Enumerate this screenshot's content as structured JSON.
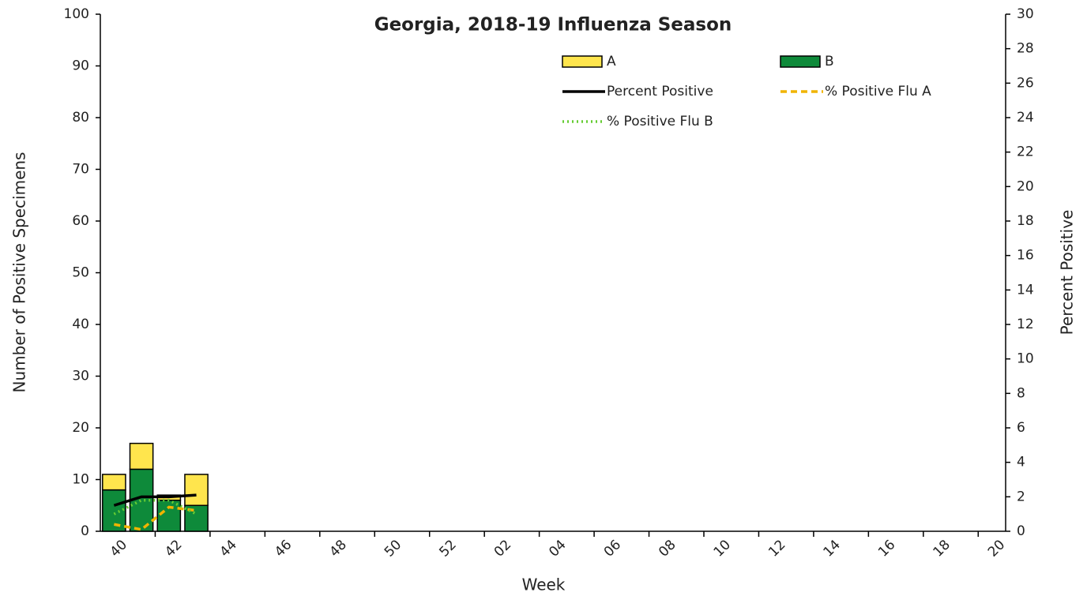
{
  "chart_data": {
    "type": "bar",
    "title": "Georgia, 2018-19 Influenza Season",
    "x_label": "Week",
    "y_label": "Number of Positive Specimens",
    "y2_label": "Percent Positive",
    "categories": [
      "40",
      null,
      "42",
      null,
      "44",
      null,
      "46",
      null,
      "48",
      null,
      "50",
      null,
      "52",
      null,
      "02",
      null,
      "04",
      null,
      "06",
      null,
      "08",
      null,
      "10",
      null,
      "12",
      null,
      "14",
      null,
      "16",
      null,
      "18",
      null,
      "20"
    ],
    "ylim": [
      0,
      100
    ],
    "yticks": [
      0,
      10,
      20,
      30,
      40,
      50,
      60,
      70,
      80,
      90,
      100
    ],
    "y2lim": [
      0,
      30
    ],
    "y2ticks": [
      0,
      2,
      4,
      6,
      8,
      10,
      12,
      14,
      16,
      18,
      20,
      22,
      24,
      26,
      28,
      30
    ],
    "stacked": true,
    "series": [
      {
        "name": "B",
        "type": "bar",
        "color": "#0e8a3a",
        "values": [
          8,
          12,
          6,
          5,
          null,
          null,
          null,
          null,
          null,
          null,
          null,
          null,
          null,
          null,
          null,
          null,
          null,
          null,
          null,
          null,
          null,
          null,
          null,
          null,
          null,
          null,
          null,
          null,
          null,
          null,
          null,
          null,
          null
        ]
      },
      {
        "name": "A",
        "type": "bar",
        "color": "#ffe54d",
        "values": [
          3,
          5,
          1,
          6,
          null,
          null,
          null,
          null,
          null,
          null,
          null,
          null,
          null,
          null,
          null,
          null,
          null,
          null,
          null,
          null,
          null,
          null,
          null,
          null,
          null,
          null,
          null,
          null,
          null,
          null,
          null,
          null,
          null
        ]
      },
      {
        "name": "Percent Positive",
        "type": "line",
        "axis": "y2",
        "color": "#000000",
        "dash": "solid",
        "values": [
          1.5,
          2.0,
          2.0,
          2.1,
          null,
          null,
          null,
          null,
          null,
          null,
          null,
          null,
          null,
          null,
          null,
          null,
          null,
          null,
          null,
          null,
          null,
          null,
          null,
          null,
          null,
          null,
          null,
          null,
          null,
          null,
          null,
          null,
          null
        ]
      },
      {
        "name": "% Positive Flu A",
        "type": "line",
        "axis": "y2",
        "color": "#f0b400",
        "dash": "dashed",
        "values": [
          0.4,
          0.1,
          1.4,
          1.2,
          null,
          null,
          null,
          null,
          null,
          null,
          null,
          null,
          null,
          null,
          null,
          null,
          null,
          null,
          null,
          null,
          null,
          null,
          null,
          null,
          null,
          null,
          null,
          null,
          null,
          null,
          null,
          null,
          null
        ]
      },
      {
        "name": "% Positive Flu B",
        "type": "line",
        "axis": "y2",
        "color": "#66cc33",
        "dash": "dotted",
        "values": [
          1.0,
          1.8,
          1.8,
          1.0,
          null,
          null,
          null,
          null,
          null,
          null,
          null,
          null,
          null,
          null,
          null,
          null,
          null,
          null,
          null,
          null,
          null,
          null,
          null,
          null,
          null,
          null,
          null,
          null,
          null,
          null,
          null,
          null,
          null
        ]
      }
    ]
  }
}
